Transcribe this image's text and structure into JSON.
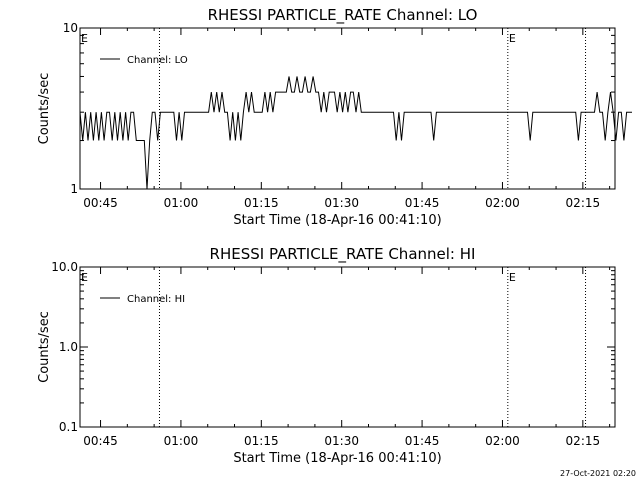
{
  "footer_timestamp": "27-Oct-2021 02:20",
  "chart_data": [
    {
      "type": "line",
      "title": "RHESSI PARTICLE_RATE Channel: LO",
      "xlabel": "Start Time (18-Apr-16 00:41:10)",
      "ylabel": "Counts/sec",
      "xlim": [
        "00:41:10",
        "02:21:00"
      ],
      "ylim": [
        1,
        10
      ],
      "yscale": "log",
      "x_tick_labels": [
        "00:45",
        "01:00",
        "01:15",
        "01:30",
        "01:45",
        "02:00",
        "02:15"
      ],
      "y_tick_labels": [
        {
          "value": 10,
          "label": "10"
        },
        {
          "value": 1,
          "label": "1"
        }
      ],
      "legend": {
        "entries": [
          "Channel: LO"
        ],
        "position": "top-left"
      },
      "flag_markers": [
        {
          "time": "00:41:10",
          "label": "E"
        },
        {
          "time": "00:56:00",
          "label": ""
        },
        {
          "time": "02:01:00",
          "label": "E"
        },
        {
          "time": "02:15:30",
          "label": ""
        }
      ],
      "series": [
        {
          "name": "Channel: LO",
          "x_start": "00:41:10",
          "x_step_seconds": 30,
          "values": [
            3,
            2,
            3,
            2,
            3,
            2,
            3,
            2,
            3,
            2,
            3,
            3,
            2,
            3,
            2,
            3,
            2,
            3,
            2,
            3,
            3,
            2,
            2,
            2,
            2,
            1,
            2,
            3,
            3,
            2,
            3,
            3,
            3,
            3,
            3,
            3,
            2,
            3,
            2,
            3,
            3,
            3,
            3,
            3,
            3,
            3,
            3,
            3,
            3,
            4,
            3,
            4,
            3,
            4,
            3,
            3,
            2,
            3,
            2,
            3,
            2,
            3,
            4,
            3,
            4,
            3,
            3,
            3,
            3,
            4,
            3,
            4,
            3,
            4,
            4,
            4,
            4,
            4,
            5,
            4,
            4,
            5,
            4,
            4,
            5,
            4,
            4,
            5,
            4,
            4,
            3,
            4,
            3,
            4,
            4,
            4,
            3,
            4,
            3,
            4,
            3,
            4,
            4,
            3,
            4,
            3,
            3,
            3,
            3,
            3,
            3,
            3,
            3,
            3,
            3,
            3,
            3,
            3,
            2,
            3,
            2,
            3,
            3,
            3,
            3,
            3,
            3,
            3,
            3,
            3,
            3,
            3,
            2,
            3,
            3,
            3,
            3,
            3,
            3,
            3,
            3,
            3,
            3,
            3,
            3,
            3,
            3,
            3,
            3,
            3,
            3,
            3,
            3,
            3,
            3,
            3,
            3,
            3,
            3,
            3,
            3,
            3,
            3,
            3,
            3,
            3,
            3,
            3,
            2,
            3,
            3,
            3,
            3,
            3,
            3,
            3,
            3,
            3,
            3,
            3,
            3,
            3,
            3,
            3,
            3,
            3,
            2,
            3,
            3,
            3,
            3,
            3,
            3,
            4,
            3,
            3,
            2,
            3,
            4,
            3,
            2,
            3,
            3,
            2,
            3,
            3,
            3
          ]
        }
      ]
    },
    {
      "type": "line",
      "title": "RHESSI PARTICLE_RATE Channel: HI",
      "xlabel": "Start Time (18-Apr-16 00:41:10)",
      "ylabel": "Counts/sec",
      "xlim": [
        "00:41:10",
        "02:21:00"
      ],
      "ylim": [
        0.1,
        10
      ],
      "yscale": "log",
      "x_tick_labels": [
        "00:45",
        "01:00",
        "01:15",
        "01:30",
        "01:45",
        "02:00",
        "02:15"
      ],
      "y_tick_labels": [
        {
          "value": 10,
          "label": "10.0"
        },
        {
          "value": 1,
          "label": "1.0"
        },
        {
          "value": 0.1,
          "label": "0.1"
        }
      ],
      "legend": {
        "entries": [
          "Channel: HI"
        ],
        "position": "top-left"
      },
      "flag_markers": [
        {
          "time": "00:41:10",
          "label": "E"
        },
        {
          "time": "00:56:00",
          "label": ""
        },
        {
          "time": "02:01:00",
          "label": "E"
        },
        {
          "time": "02:15:30",
          "label": ""
        }
      ],
      "series": [
        {
          "name": "Channel: HI",
          "values": []
        }
      ]
    }
  ]
}
